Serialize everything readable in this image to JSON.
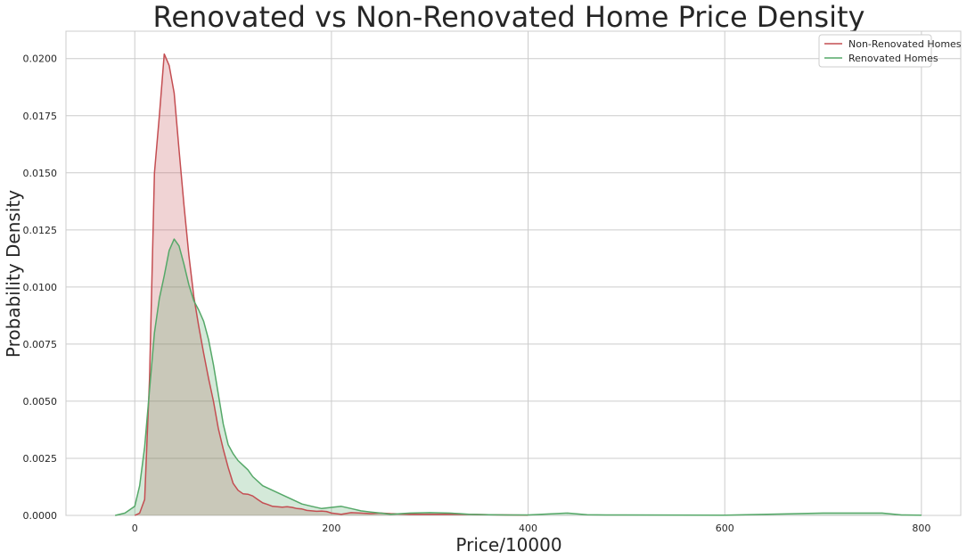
{
  "chart_data": {
    "type": "area",
    "title": "Renovated vs Non-Renovated Home Price Density",
    "xlabel": "Price/10000",
    "ylabel": "Probability Density",
    "xlim": [
      -70,
      840
    ],
    "ylim": [
      0,
      0.0212
    ],
    "xticks": [
      0,
      200,
      400,
      600,
      800
    ],
    "yticks": [
      0.0,
      0.0025,
      0.005,
      0.0075,
      0.01,
      0.0125,
      0.015,
      0.0175,
      0.02
    ],
    "ytick_labels": [
      "0.0000",
      "0.0025",
      "0.0050",
      "0.0075",
      "0.0100",
      "0.0125",
      "0.0150",
      "0.0175",
      "0.0200"
    ],
    "grid": true,
    "legend_position": "top-right",
    "series": [
      {
        "name": "Non-Renovated Homes",
        "color": "#c44e52",
        "x": [
          0,
          5,
          10,
          15,
          20,
          25,
          30,
          35,
          40,
          45,
          50,
          55,
          60,
          65,
          70,
          75,
          80,
          85,
          90,
          95,
          100,
          105,
          110,
          115,
          120,
          125,
          130,
          135,
          140,
          145,
          150,
          155,
          160,
          165,
          170,
          175,
          180,
          185,
          190,
          195,
          200,
          210,
          220,
          230,
          240,
          250,
          260,
          280,
          300,
          320,
          340,
          360,
          380,
          400
        ],
        "y": [
          0.0,
          0.0001,
          0.0007,
          0.006,
          0.015,
          0.0175,
          0.0202,
          0.0197,
          0.0185,
          0.016,
          0.0136,
          0.0114,
          0.0096,
          0.0083,
          0.0071,
          0.006,
          0.005,
          0.0038,
          0.0029,
          0.0021,
          0.0014,
          0.0011,
          0.00095,
          0.00093,
          0.00085,
          0.0007,
          0.00055,
          0.00048,
          0.0004,
          0.00038,
          0.00036,
          0.00038,
          0.00035,
          0.0003,
          0.00028,
          0.00022,
          0.0002,
          0.00018,
          0.00019,
          0.00017,
          0.0001,
          5e-05,
          0.00012,
          0.0001,
          8e-05,
          0.0001,
          8e-05,
          5e-05,
          5e-05,
          5e-05,
          5e-05,
          3e-05,
          2e-05,
          1e-05
        ]
      },
      {
        "name": "Renovated Homes",
        "color": "#55a868",
        "x": [
          -20,
          -10,
          0,
          5,
          10,
          15,
          20,
          25,
          30,
          35,
          40,
          45,
          50,
          55,
          60,
          65,
          70,
          75,
          80,
          85,
          90,
          95,
          100,
          105,
          110,
          115,
          120,
          130,
          140,
          150,
          160,
          170,
          180,
          190,
          200,
          210,
          220,
          230,
          240,
          250,
          260,
          280,
          300,
          320,
          330,
          340,
          360,
          380,
          400,
          440,
          460,
          480,
          500,
          600,
          700,
          760,
          780,
          800
        ],
        "y": [
          0.0,
          0.0001,
          0.0004,
          0.0013,
          0.003,
          0.0055,
          0.008,
          0.0095,
          0.0105,
          0.0116,
          0.0121,
          0.0118,
          0.011,
          0.0101,
          0.0094,
          0.009,
          0.0085,
          0.0077,
          0.0066,
          0.0053,
          0.004,
          0.0031,
          0.0027,
          0.0024,
          0.0022,
          0.002,
          0.0017,
          0.0013,
          0.0011,
          0.0009,
          0.0007,
          0.0005,
          0.0004,
          0.0003,
          0.00035,
          0.0004,
          0.0003,
          0.0002,
          0.00015,
          0.0001,
          5e-05,
          0.0001,
          0.00012,
          0.0001,
          8e-05,
          5e-05,
          3e-05,
          2e-05,
          2e-05,
          0.0001,
          3e-05,
          2e-05,
          2e-05,
          1e-05,
          0.0001,
          0.0001,
          2e-05,
          1e-05
        ]
      }
    ]
  }
}
